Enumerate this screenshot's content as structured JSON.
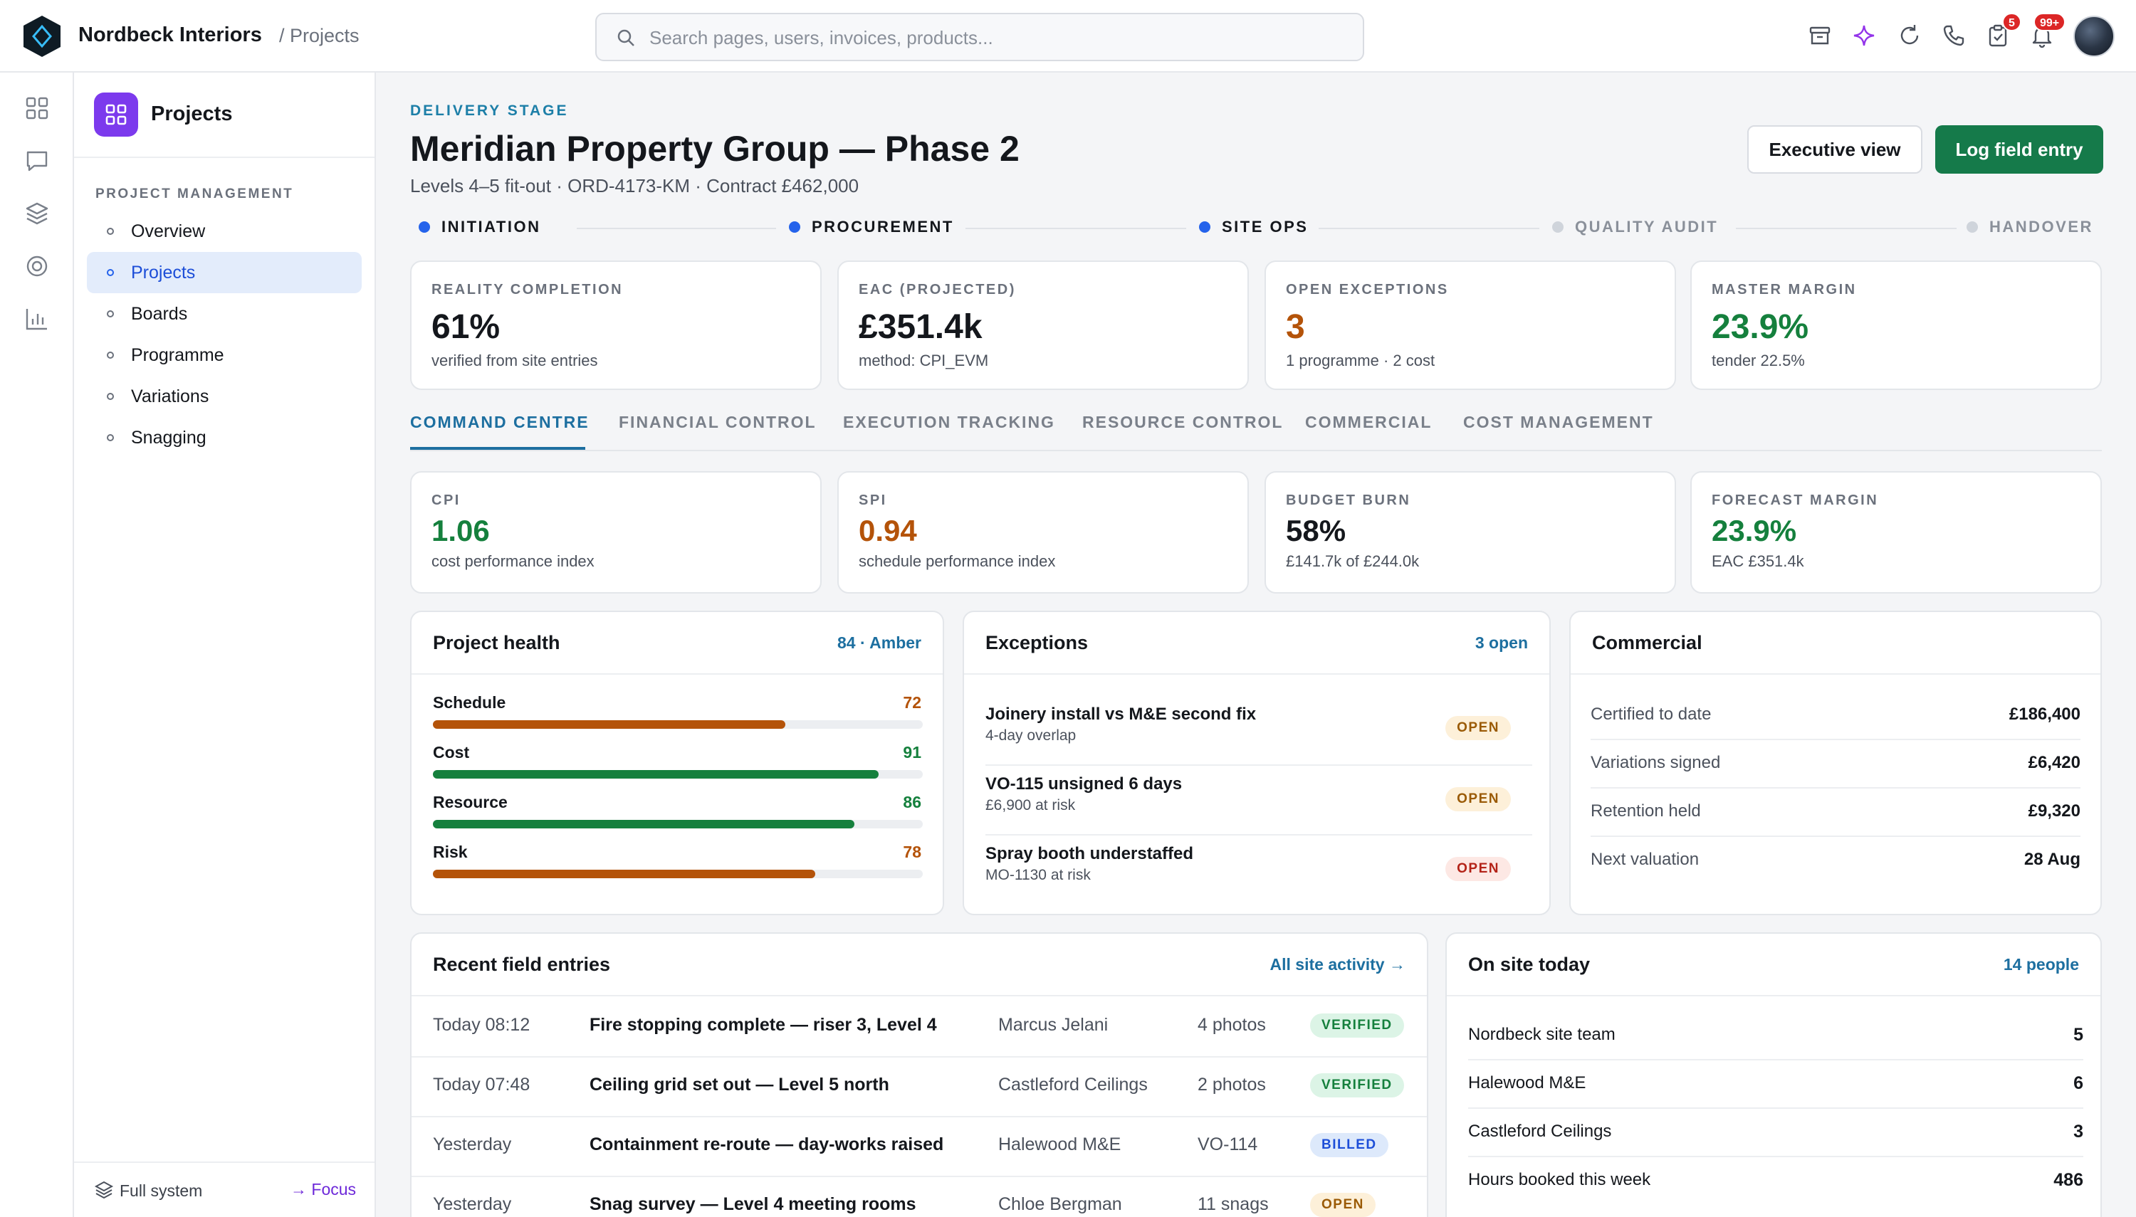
{
  "app": {
    "brand": "Nordbeck Interiors",
    "breadcrumb": "/ Projects"
  },
  "search": {
    "placeholder": "Search pages, users, invoices, products..."
  },
  "topbar": {
    "icons": [
      "archive-icon",
      "sparkle-icon",
      "refresh-icon",
      "phone-icon",
      "clipboard-icon",
      "bell-icon"
    ],
    "clipboard_badge": "5",
    "bell_badge": "99+"
  },
  "rail": {
    "icons": [
      "grid-icon",
      "chat-icon",
      "layers-icon",
      "target-icon",
      "bar-chart-icon"
    ]
  },
  "sidebar": {
    "title": "Projects",
    "section": "PROJECT MANAGEMENT",
    "items": [
      {
        "label": "Overview"
      },
      {
        "label": "Projects"
      },
      {
        "label": "Boards"
      },
      {
        "label": "Programme"
      },
      {
        "label": "Variations"
      },
      {
        "label": "Snagging"
      }
    ],
    "active_index": 1,
    "footer_left": "Full system",
    "footer_right": "→ Focus"
  },
  "header": {
    "eyebrow": "DELIVERY STAGE",
    "title": "Meridian Property Group — Phase 2",
    "subtitle": "Levels 4–5 fit-out · ORD-4173-KM · Contract £462,000",
    "btn_secondary": "Executive view",
    "btn_primary": "Log field entry"
  },
  "stages": [
    {
      "label": "INITIATION",
      "done": true
    },
    {
      "label": "PROCUREMENT",
      "done": true
    },
    {
      "label": "SITE OPS",
      "done": true
    },
    {
      "label": "QUALITY AUDIT",
      "done": false
    },
    {
      "label": "HANDOVER",
      "done": false
    }
  ],
  "kpis": [
    {
      "label": "REALITY COMPLETION",
      "value": "61%",
      "sub": "verified from site entries",
      "tone": "default"
    },
    {
      "label": "EAC (PROJECTED)",
      "value": "£351.4k",
      "sub": "method: CPI_EVM",
      "tone": "default"
    },
    {
      "label": "OPEN EXCEPTIONS",
      "value": "3",
      "sub": "1 programme · 2 cost",
      "tone": "orange"
    },
    {
      "label": "MASTER MARGIN",
      "value": "23.9%",
      "sub": "tender 22.5%",
      "tone": "green"
    }
  ],
  "tabs": [
    "COMMAND CENTRE",
    "FINANCIAL CONTROL",
    "EXECUTION TRACKING",
    "RESOURCE CONTROL",
    "COMMERCIAL",
    "COST MANAGEMENT"
  ],
  "metrics": [
    {
      "label": "CPI",
      "value": "1.06",
      "sub": "cost performance index",
      "tone": "green"
    },
    {
      "label": "SPI",
      "value": "0.94",
      "sub": "schedule performance index",
      "tone": "orange"
    },
    {
      "label": "BUDGET BURN",
      "value": "58%",
      "sub": "£141.7k of £244.0k",
      "tone": "default"
    },
    {
      "label": "FORECAST MARGIN",
      "value": "23.9%",
      "sub": "EAC £351.4k",
      "tone": "green"
    }
  ],
  "health": {
    "title": "Project health",
    "score": "84 · Amber",
    "bars": [
      {
        "label": "Schedule",
        "value": 72,
        "color": "#b45309"
      },
      {
        "label": "Cost",
        "value": 91,
        "color": "#15803d"
      },
      {
        "label": "Resource",
        "value": 86,
        "color": "#15803d"
      },
      {
        "label": "Risk",
        "value": 78,
        "color": "#b45309"
      }
    ]
  },
  "exceptions": {
    "title": "Exceptions",
    "count": "3 open",
    "items": [
      {
        "title": "Joinery install vs M&E second fix",
        "sub": "4-day overlap",
        "status": "OPEN",
        "tone": "amber"
      },
      {
        "title": "VO-115 unsigned 6 days",
        "sub": "£6,900 at risk",
        "status": "OPEN",
        "tone": "amber"
      },
      {
        "title": "Spray booth understaffed",
        "sub": "MO-1130 at risk",
        "status": "OPEN",
        "tone": "red"
      }
    ]
  },
  "commercial": {
    "title": "Commercial",
    "rows": [
      {
        "label": "Certified to date",
        "value": "£186,400"
      },
      {
        "label": "Variations signed",
        "value": "£6,420"
      },
      {
        "label": "Retention held",
        "value": "£9,320"
      },
      {
        "label": "Next valuation",
        "value": "28 Aug"
      }
    ]
  },
  "field_entries": {
    "title": "Recent field entries",
    "link": "All site activity →",
    "rows": [
      {
        "time": "Today 08:12",
        "title": "Fire stopping complete — riser 3, Level 4",
        "who": "Marcus Jelani",
        "meta": "4 photos",
        "status": "VERIFIED",
        "tone": "verified"
      },
      {
        "time": "Today 07:48",
        "title": "Ceiling grid set out — Level 5 north",
        "who": "Castleford Ceilings",
        "meta": "2 photos",
        "status": "VERIFIED",
        "tone": "verified"
      },
      {
        "time": "Yesterday",
        "title": "Containment re-route — day-works raised",
        "who": "Halewood M&E",
        "meta": "VO-114",
        "status": "BILLED",
        "tone": "billed"
      },
      {
        "time": "Yesterday",
        "title": "Snag survey — Level 4 meeting rooms",
        "who": "Chloe Bergman",
        "meta": "11 snags",
        "status": "OPEN",
        "tone": "open"
      }
    ]
  },
  "on_site": {
    "title": "On site today",
    "count": "14 people",
    "rows": [
      {
        "label": "Nordbeck site team",
        "value": "5"
      },
      {
        "label": "Halewood M&E",
        "value": "6"
      },
      {
        "label": "Castleford Ceilings",
        "value": "3"
      },
      {
        "label": "Hours booked this week",
        "value": "486"
      }
    ]
  }
}
